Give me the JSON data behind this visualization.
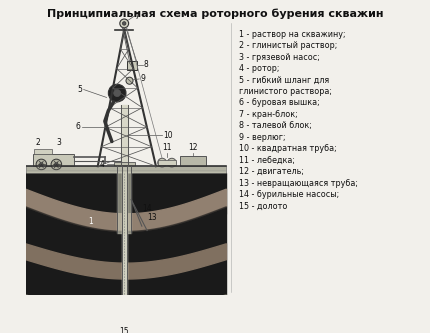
{
  "title": "Принципиальная схема роторного бурения скважин",
  "legend_items": [
    "1 - раствор на скважину;",
    "2 - глинистый раствор;",
    "3 - грязевой насос;",
    "4 - ротор;",
    "5 - гибкий шланг для",
    "глинистого раствора;",
    "6 - буровая вышка;",
    "7 - кран-блок;",
    "8 - талевой блок;",
    "9 - верлюг;",
    "10 - квадратная труба;",
    "11 - лебедка;",
    "12 - двигатель;",
    "13 - невращающаяся труба;",
    "14 - бурильные насосы;",
    "15 - долото"
  ],
  "colors": {
    "bg": "#f2f0eb",
    "black": "#111111",
    "dark": "#1a1a1a",
    "gray1": "#333333",
    "gray2": "#555555",
    "gray3": "#777777",
    "gray4": "#999999",
    "light": "#cccccc",
    "vlight": "#e8e8e0",
    "rock1": "#8a8070",
    "rock2": "#6a6050",
    "white": "#ffffff"
  }
}
